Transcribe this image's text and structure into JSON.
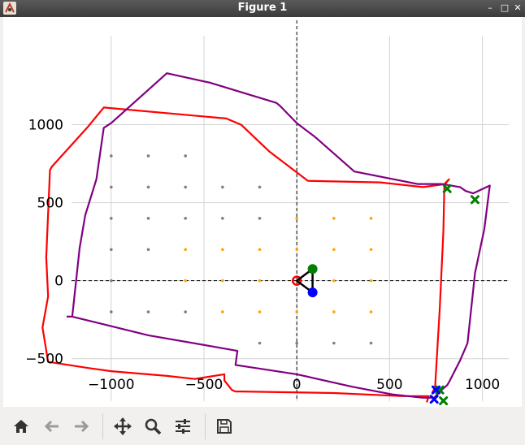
{
  "window": {
    "title": "Figure 1"
  },
  "toolbar": {
    "buttons": [
      {
        "icon": "home-icon"
      },
      {
        "icon": "back-arrow-icon"
      },
      {
        "icon": "forward-arrow-icon"
      },
      {
        "icon": "pan-icon"
      },
      {
        "icon": "zoom-icon"
      },
      {
        "icon": "configure-subplots-icon"
      },
      {
        "icon": "save-icon"
      }
    ]
  },
  "chart_data": {
    "type": "scatter",
    "title": "",
    "xlabel": "",
    "ylabel": "",
    "xlim": [
      -1170,
      1120
    ],
    "ylim": [
      -720,
      1310
    ],
    "x_ticks": [
      -1000,
      -500,
      0,
      500,
      1000
    ],
    "x_tick_labels": [
      "−1000",
      "−500",
      "0",
      "500",
      "1000"
    ],
    "y_ticks": [
      -500,
      0,
      500,
      1000
    ],
    "y_tick_labels": [
      "−500",
      "0",
      "500",
      "1000"
    ],
    "grid": true,
    "colors": {
      "red_path": "#ff0000",
      "purple_path": "#800080",
      "gray_points": "#808080",
      "orange_points": "#ffa500",
      "green_marker": "#008000",
      "blue_marker": "#0000ff",
      "grid": "#d3d3d3"
    },
    "series": [
      {
        "type": "line",
        "color": "#ff0000",
        "points": [
          [
            730,
            -720
          ],
          [
            745,
            -680
          ],
          [
            770,
            -180
          ],
          [
            790,
            320
          ],
          [
            795,
            620
          ],
          [
            820,
            650
          ],
          [
            800,
            620
          ],
          [
            680,
            600
          ],
          [
            450,
            630
          ],
          [
            60,
            640
          ],
          [
            -150,
            830
          ],
          [
            -300,
            1000
          ],
          [
            -380,
            1040
          ],
          [
            -1040,
            1110
          ],
          [
            -1130,
            980
          ],
          [
            -1320,
            730
          ],
          [
            -1330,
            710
          ],
          [
            -1350,
            150
          ],
          [
            -1340,
            -100
          ],
          [
            -1370,
            -300
          ],
          [
            -1340,
            -520
          ],
          [
            -1120,
            -560
          ],
          [
            -1000,
            -580
          ],
          [
            -700,
            -610
          ],
          [
            -550,
            -630
          ],
          [
            -390,
            -600
          ],
          [
            -390,
            -640
          ],
          [
            -350,
            -700
          ],
          [
            -330,
            -710
          ],
          [
            -300,
            -710
          ],
          [
            200,
            -720
          ],
          [
            570,
            -740
          ],
          [
            710,
            -740
          ],
          [
            700,
            -780
          ]
        ]
      },
      {
        "type": "line",
        "color": "#800080",
        "points": [
          [
            -1240,
            -230
          ],
          [
            -1210,
            -230
          ],
          [
            -1170,
            210
          ],
          [
            -1140,
            420
          ],
          [
            -1080,
            650
          ],
          [
            -1040,
            980
          ],
          [
            -1000,
            1010
          ],
          [
            -700,
            1330
          ],
          [
            -470,
            1270
          ],
          [
            -110,
            1140
          ],
          [
            -90,
            1120
          ],
          [
            0,
            1010
          ],
          [
            100,
            920
          ],
          [
            310,
            700
          ],
          [
            650,
            620
          ],
          [
            780,
            620
          ],
          [
            880,
            600
          ],
          [
            910,
            575
          ],
          [
            950,
            560
          ],
          [
            1040,
            610
          ],
          [
            1010,
            330
          ],
          [
            960,
            50
          ],
          [
            920,
            -400
          ],
          [
            880,
            -510
          ],
          [
            820,
            -650
          ],
          [
            810,
            -670
          ],
          [
            780,
            -700
          ],
          [
            740,
            -750
          ],
          [
            680,
            -750
          ],
          [
            520,
            -730
          ],
          [
            300,
            -680
          ],
          [
            0,
            -600
          ],
          [
            -330,
            -540
          ],
          [
            -320,
            -450
          ],
          [
            -460,
            -420
          ],
          [
            -800,
            -350
          ],
          [
            -1210,
            -230
          ]
        ]
      },
      {
        "type": "scatter",
        "color": "#808080",
        "points": [
          [
            -1000,
            800
          ],
          [
            -800,
            800
          ],
          [
            -600,
            800
          ],
          [
            -1000,
            600
          ],
          [
            -800,
            600
          ],
          [
            -600,
            600
          ],
          [
            -400,
            600
          ],
          [
            -200,
            600
          ],
          [
            -1000,
            400
          ],
          [
            -800,
            400
          ],
          [
            -600,
            400
          ],
          [
            -400,
            400
          ],
          [
            -200,
            400
          ],
          [
            -1000,
            200
          ],
          [
            -800,
            200
          ],
          [
            -1000,
            0
          ],
          [
            -1000,
            -200
          ],
          [
            -800,
            -200
          ],
          [
            -600,
            -200
          ],
          [
            -200,
            -400
          ],
          [
            0,
            -400
          ],
          [
            200,
            -400
          ],
          [
            400,
            -400
          ]
        ]
      },
      {
        "type": "scatter",
        "color": "#ffa500",
        "points": [
          [
            0,
            400
          ],
          [
            200,
            400
          ],
          [
            400,
            400
          ],
          [
            -600,
            200
          ],
          [
            -400,
            200
          ],
          [
            -200,
            200
          ],
          [
            0,
            200
          ],
          [
            200,
            200
          ],
          [
            400,
            200
          ],
          [
            -600,
            0
          ],
          [
            -400,
            0
          ],
          [
            -200,
            0
          ],
          [
            200,
            0
          ],
          [
            400,
            0
          ],
          [
            -400,
            -200
          ],
          [
            -200,
            -200
          ],
          [
            0,
            -200
          ],
          [
            200,
            -200
          ],
          [
            400,
            -200
          ]
        ]
      }
    ],
    "markers": [
      {
        "name": "origin",
        "shape": "open-circle",
        "x": 0,
        "y": 0,
        "color": "#ff0000"
      },
      {
        "name": "pose-triangle",
        "shape": "triangle",
        "points": [
          [
            0,
            0
          ],
          [
            85,
            75
          ],
          [
            85,
            -75
          ]
        ],
        "color": "#000000"
      },
      {
        "name": "pose-green",
        "shape": "circle",
        "x": 85,
        "y": 75,
        "color": "#008000"
      },
      {
        "name": "pose-blue",
        "shape": "circle",
        "x": 85,
        "y": -75,
        "color": "#0000ff"
      },
      {
        "name": "target-green-1",
        "shape": "x",
        "x": 810,
        "y": 590,
        "color": "#008000"
      },
      {
        "name": "target-green-2",
        "shape": "x",
        "x": 960,
        "y": 520,
        "color": "#008000"
      },
      {
        "name": "target-green-3",
        "shape": "x",
        "x": 770,
        "y": -700,
        "color": "#008000"
      },
      {
        "name": "target-green-4",
        "shape": "x",
        "x": 790,
        "y": -770,
        "color": "#008000"
      },
      {
        "name": "target-blue-1",
        "shape": "x",
        "x": 750,
        "y": -700,
        "color": "#0000ff"
      },
      {
        "name": "target-blue-2",
        "shape": "x",
        "x": 740,
        "y": -760,
        "color": "#0000ff"
      }
    ]
  }
}
